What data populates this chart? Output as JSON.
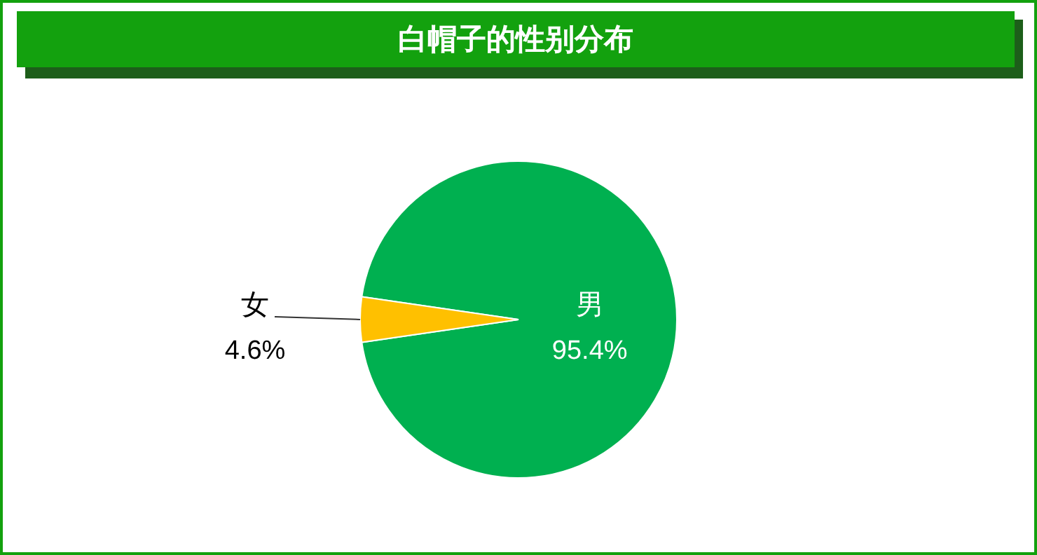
{
  "chart_data": {
    "type": "pie",
    "title": "白帽子的性别分布",
    "categories": [
      "男",
      "女"
    ],
    "values": [
      95.4,
      4.6
    ],
    "colors": [
      "#00b050",
      "#ffc000"
    ],
    "value_labels": [
      "95.4%",
      "4.6%"
    ]
  }
}
